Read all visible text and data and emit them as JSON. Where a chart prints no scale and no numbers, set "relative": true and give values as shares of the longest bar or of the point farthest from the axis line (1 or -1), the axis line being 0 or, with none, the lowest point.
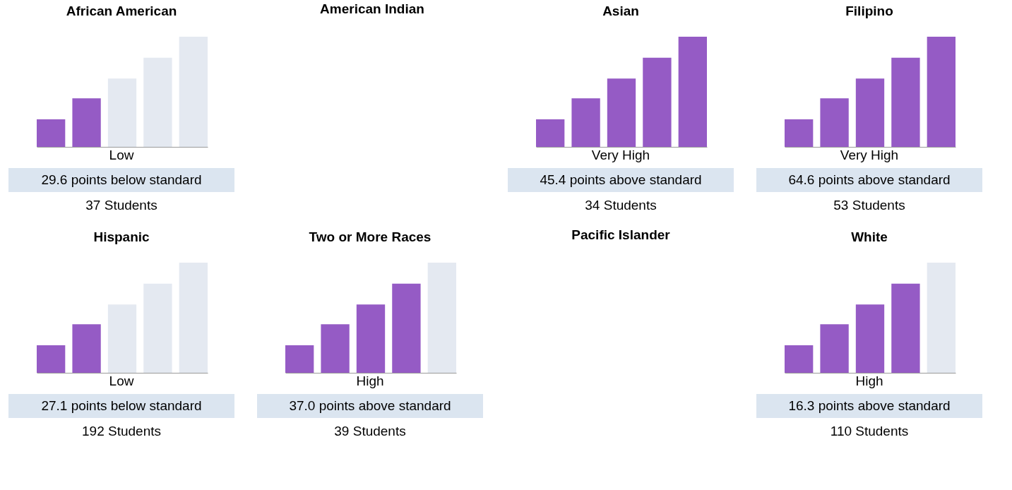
{
  "chart_data": [
    {
      "type": "bar",
      "title": "African American",
      "categories": [
        null,
        null,
        null,
        null,
        null
      ],
      "values": [
        0.25,
        0.44,
        0.62,
        0.81,
        1
      ],
      "relative": true,
      "colors": [
        "#955bc5",
        "#955bc5",
        "#e4e9f1",
        "#e4e9f1",
        "#e4e9f1"
      ],
      "annotations": [
        "Low",
        "29.6 points below standard",
        "37 Students"
      ]
    },
    {
      "type": "other",
      "title": "American Indian"
    },
    {
      "type": "bar",
      "title": "Asian",
      "categories": [
        null,
        null,
        null,
        null,
        null
      ],
      "values": [
        0.25,
        0.44,
        0.62,
        0.81,
        1
      ],
      "relative": true,
      "colors": [
        "#955bc5",
        "#955bc5",
        "#955bc5",
        "#955bc5",
        "#955bc5"
      ],
      "annotations": [
        "Very High",
        "45.4 points above standard",
        "34 Students"
      ]
    },
    {
      "type": "bar",
      "title": "Filipino",
      "categories": [
        null,
        null,
        null,
        null,
        null
      ],
      "values": [
        0.25,
        0.44,
        0.62,
        0.81,
        1
      ],
      "relative": true,
      "colors": [
        "#955bc5",
        "#955bc5",
        "#955bc5",
        "#955bc5",
        "#955bc5"
      ],
      "annotations": [
        "Very High",
        "64.6 points above standard",
        "53 Students"
      ]
    },
    {
      "type": "bar",
      "title": "Hispanic",
      "categories": [
        null,
        null,
        null,
        null,
        null
      ],
      "values": [
        0.25,
        0.44,
        0.62,
        0.81,
        1
      ],
      "relative": true,
      "colors": [
        "#955bc5",
        "#955bc5",
        "#e4e9f1",
        "#e4e9f1",
        "#e4e9f1"
      ],
      "annotations": [
        "Low",
        "27.1 points below standard",
        "192 Students"
      ]
    },
    {
      "type": "bar",
      "title": "Two or More Races",
      "categories": [
        null,
        null,
        null,
        null,
        null
      ],
      "values": [
        0.25,
        0.44,
        0.62,
        0.81,
        1
      ],
      "relative": true,
      "colors": [
        "#955bc5",
        "#955bc5",
        "#955bc5",
        "#955bc5",
        "#e4e9f1"
      ],
      "annotations": [
        "High",
        "37.0 points above standard",
        "39 Students"
      ]
    },
    {
      "type": "other",
      "title": "Pacific Islander"
    },
    {
      "type": "bar",
      "title": "White",
      "categories": [
        null,
        null,
        null,
        null,
        null
      ],
      "values": [
        0.25,
        0.44,
        0.62,
        0.81,
        1
      ],
      "relative": true,
      "colors": [
        "#955bc5",
        "#955bc5",
        "#955bc5",
        "#955bc5",
        "#e4e9f1"
      ],
      "annotations": [
        "High",
        "16.3 points above standard",
        "110 Students"
      ]
    }
  ]
}
